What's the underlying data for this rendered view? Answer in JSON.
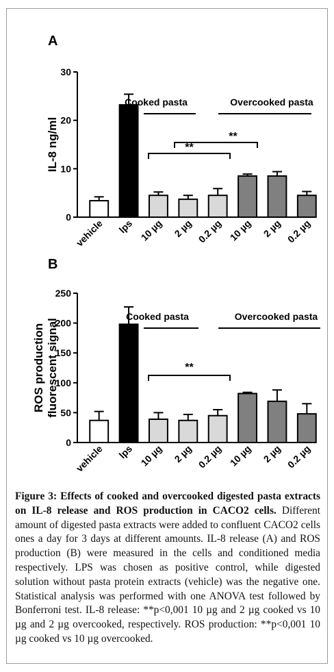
{
  "charts": [
    {
      "panel": "A",
      "type": "bar",
      "ylabel": "IL-8 ng/ml",
      "ylim": [
        0,
        30
      ],
      "yticks": [
        0,
        10,
        20,
        30
      ],
      "categories": [
        "vehicle",
        "lps",
        "10 µg",
        "2 µg",
        "0.2 µg",
        "10 µg",
        "2 µg",
        "0.2 µg"
      ],
      "values": [
        3.4,
        23.2,
        4.5,
        3.7,
        4.5,
        8.5,
        8.5,
        4.5
      ],
      "errors": [
        0.8,
        2.2,
        0.7,
        0.8,
        1.4,
        0.4,
        0.9,
        0.8
      ],
      "group_labels": [
        "Cooked pasta",
        "Overcooked pasta"
      ],
      "annotations": [
        "**",
        "**"
      ]
    },
    {
      "panel": "B",
      "type": "bar",
      "ylabel_line1": "ROS production",
      "ylabel_line2": "fluorescent signal",
      "ylim": [
        0,
        250
      ],
      "yticks": [
        0,
        50,
        100,
        150,
        200,
        250
      ],
      "categories": [
        "vehicle",
        "lps",
        "10 µg",
        "2 µg",
        "0.2 µg",
        "10 µg",
        "2 µg",
        "0.2 µg"
      ],
      "values": [
        37,
        198,
        39,
        37,
        45,
        82,
        69,
        48
      ],
      "errors": [
        15,
        29,
        11,
        10,
        10,
        2,
        19,
        17
      ],
      "group_labels": [
        "Cooked pasta",
        "Overcooked pasta"
      ],
      "annotations": [
        "**"
      ]
    }
  ],
  "chart_data": [
    {
      "type": "bar",
      "title": "A",
      "xlabel": "",
      "ylabel": "IL-8 ng/ml",
      "categories": [
        "vehicle",
        "lps",
        "10 µg",
        "2 µg",
        "0.2 µg",
        "10 µg",
        "2 µg",
        "0.2 µg"
      ],
      "values": [
        3.4,
        23.2,
        4.5,
        3.7,
        4.5,
        8.5,
        8.5,
        4.5
      ],
      "ylim": [
        0,
        30
      ]
    },
    {
      "type": "bar",
      "title": "B",
      "xlabel": "",
      "ylabel": "ROS production fluorescent signal",
      "categories": [
        "vehicle",
        "lps",
        "10 µg",
        "2 µg",
        "0.2 µg",
        "10 µg",
        "2 µg",
        "0.2 µg"
      ],
      "values": [
        37,
        198,
        39,
        37,
        45,
        82,
        69,
        48
      ],
      "ylim": [
        0,
        250
      ]
    }
  ],
  "colors": {
    "vehicle": "#ffffff",
    "lps": "#000000",
    "cooked": "#d9d9d9",
    "overcooked": "#808080"
  },
  "caption": {
    "lead": "Figure 3: Effects of cooked and overcooked digested pasta extracts on IL-8 release and ROS production in CACO2 cells.",
    "body": " Different amount of digested pasta extracts were added to confluent CACO2 cells ones a day for 3 days at different amounts. IL-8 release (A) and ROS production (B) were measured in the cells and conditioned media respectively. LPS was chosen as positive control, while digested solution without pasta protein extracts (vehicle) was the negative one. Statistical analysis was performed with one ANOVA test followed by Bonferroni test. IL-8 release: **p<0,001 10 µg and 2 µg cooked vs 10 µg and 2 µg overcooked, respectively. ROS production: **p<0,001 10 µg cooked vs 10 µg overcooked."
  }
}
